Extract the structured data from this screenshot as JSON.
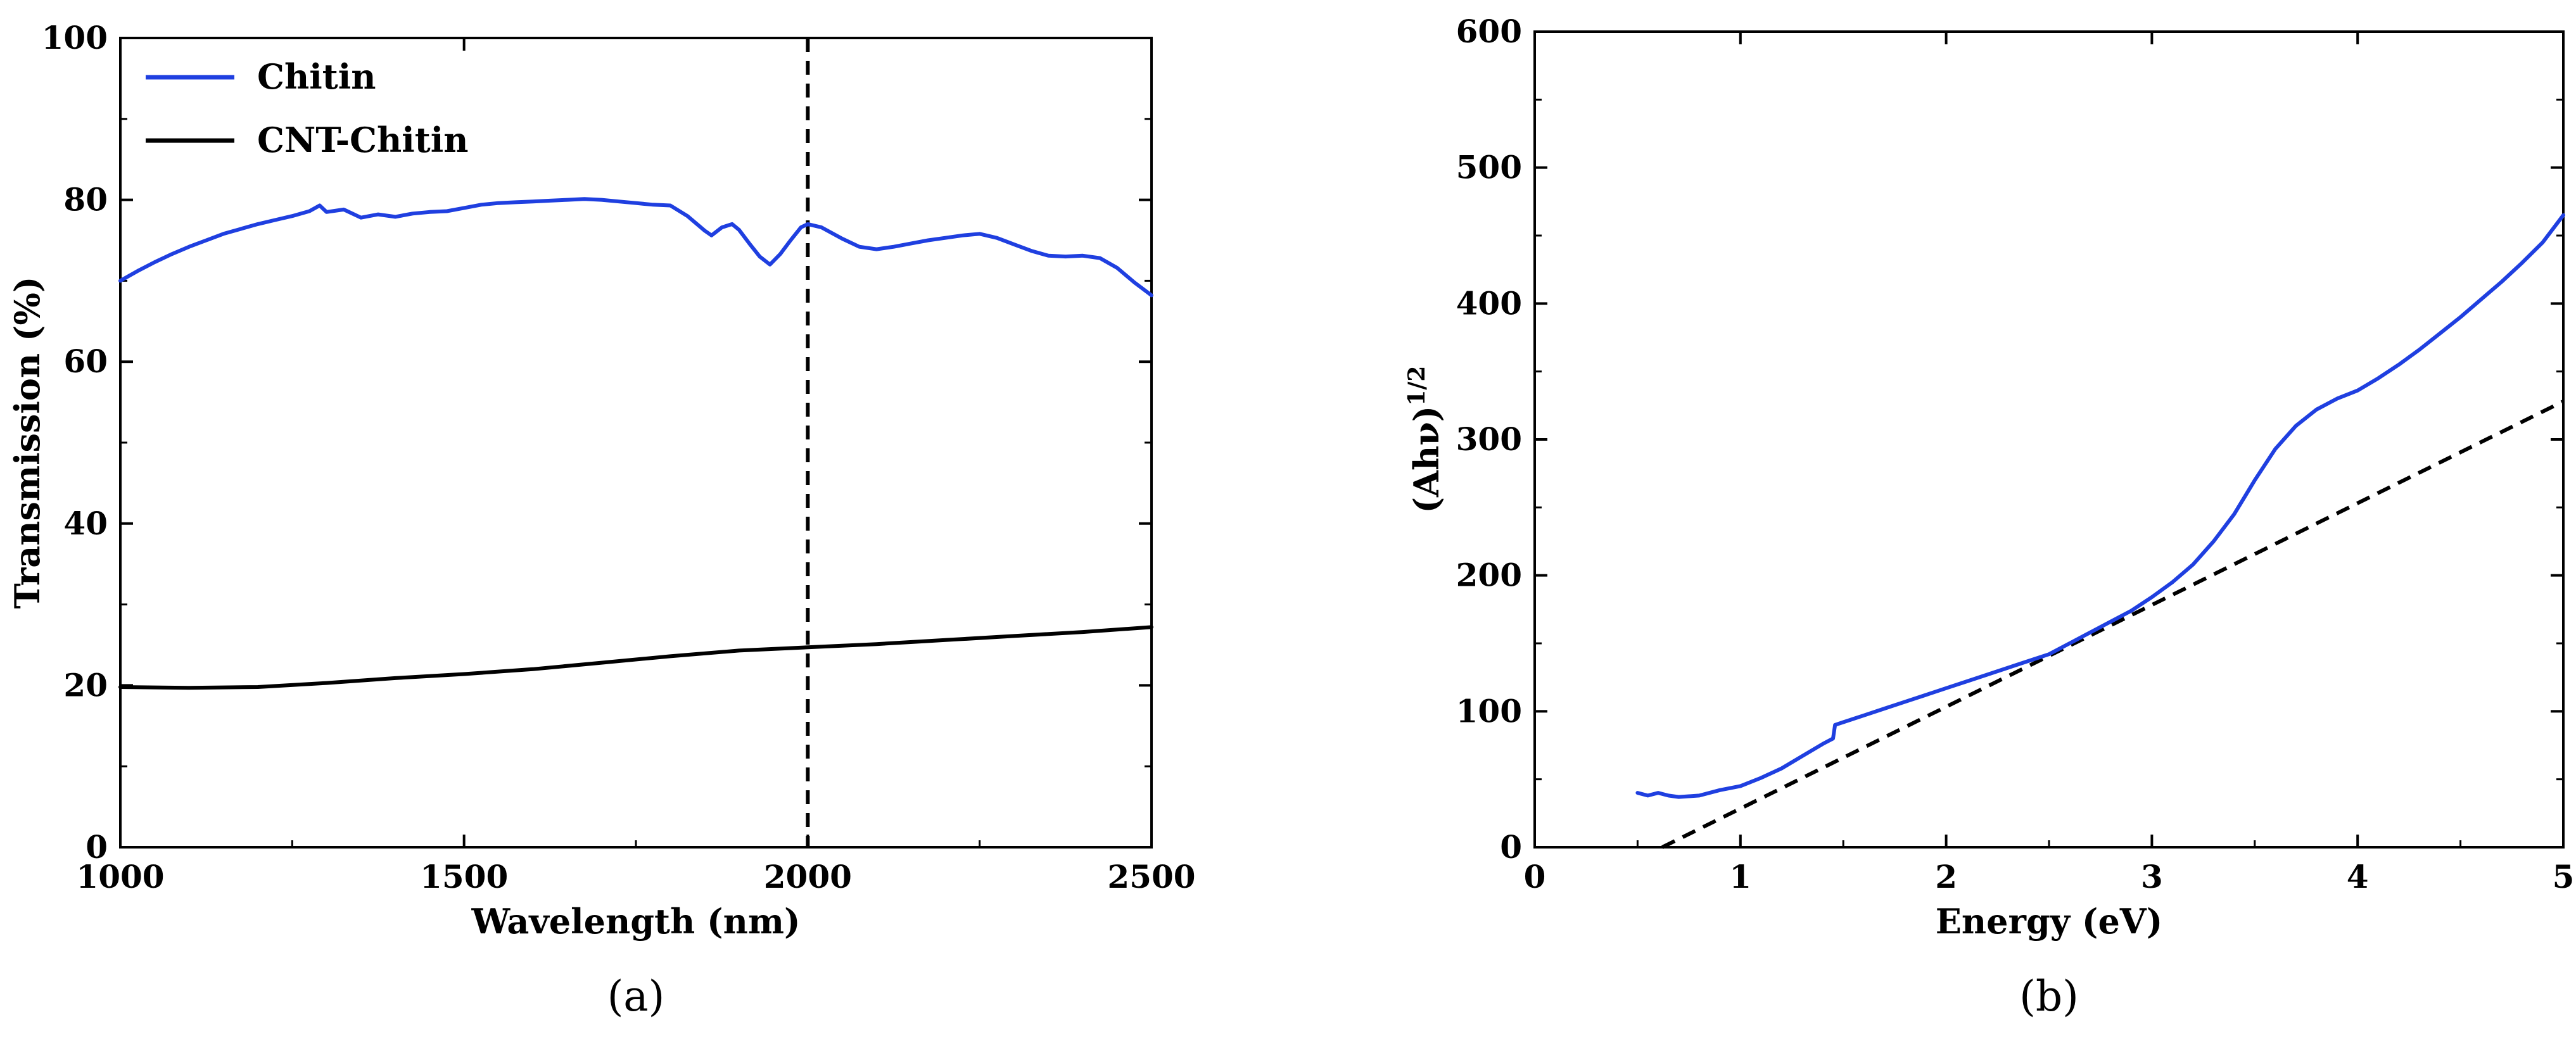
{
  "chart_data": [
    {
      "type": "line",
      "panel_label": "(a)",
      "xlabel": "Wavelength (nm)",
      "ylabel": "Transmission (%)",
      "xlim": [
        1000,
        2500
      ],
      "ylim": [
        0,
        100
      ],
      "xticks": [
        1000,
        1500,
        2000,
        2500
      ],
      "yticks": [
        0,
        20,
        40,
        60,
        80,
        100
      ],
      "legend_position": "top-left",
      "grid": false,
      "series": [
        {
          "name": "Chitin",
          "color": "#1f3fe0",
          "x": [
            1000,
            1025,
            1050,
            1075,
            1100,
            1125,
            1150,
            1175,
            1200,
            1225,
            1250,
            1275,
            1290,
            1300,
            1325,
            1350,
            1375,
            1400,
            1425,
            1450,
            1475,
            1500,
            1525,
            1550,
            1575,
            1600,
            1625,
            1650,
            1675,
            1700,
            1725,
            1750,
            1775,
            1800,
            1825,
            1850,
            1860,
            1875,
            1890,
            1900,
            1915,
            1930,
            1945,
            1960,
            1975,
            1990,
            2000,
            2020,
            2050,
            2075,
            2100,
            2125,
            2150,
            2175,
            2200,
            2225,
            2250,
            2275,
            2300,
            2325,
            2350,
            2375,
            2400,
            2425,
            2450,
            2475,
            2500
          ],
          "y": [
            70,
            71.2,
            72.3,
            73.3,
            74.2,
            75,
            75.8,
            76.4,
            77,
            77.5,
            78,
            78.6,
            79.3,
            78.5,
            78.8,
            77.8,
            78.2,
            77.9,
            78.3,
            78.5,
            78.6,
            79,
            79.4,
            79.6,
            79.7,
            79.8,
            79.9,
            80,
            80.1,
            80,
            79.8,
            79.6,
            79.4,
            79.3,
            78,
            76.2,
            75.6,
            76.6,
            77,
            76.3,
            74.6,
            73,
            72,
            73.3,
            75,
            76.6,
            77,
            76.6,
            75.2,
            74.2,
            73.9,
            74.2,
            74.6,
            75,
            75.3,
            75.6,
            75.8,
            75.3,
            74.5,
            73.7,
            73.1,
            73,
            73.1,
            72.8,
            71.6,
            69.8,
            68.2
          ]
        },
        {
          "name": "CNT-Chitin",
          "color": "#000000",
          "x": [
            1000,
            1100,
            1200,
            1300,
            1400,
            1500,
            1600,
            1700,
            1800,
            1900,
            2000,
            2100,
            2200,
            2300,
            2400,
            2500
          ],
          "y": [
            19.8,
            19.7,
            19.8,
            20.3,
            20.9,
            21.4,
            22,
            22.8,
            23.6,
            24.3,
            24.7,
            25.1,
            25.6,
            26.1,
            26.6,
            27.2
          ]
        }
      ],
      "reference_line": {
        "axis": "x",
        "value": 2000,
        "style": "dashed"
      }
    },
    {
      "type": "line",
      "panel_label": "(b)",
      "xlabel": "Energy (eV)",
      "ylabel": "(Ahν)",
      "ylabel_superscript": "1/2",
      "xlim": [
        0,
        5
      ],
      "ylim": [
        0,
        600
      ],
      "xticks": [
        0,
        1,
        2,
        3,
        4,
        5
      ],
      "yticks": [
        0,
        100,
        200,
        300,
        400,
        500,
        600
      ],
      "legend_position": "none",
      "grid": false,
      "series": [
        {
          "color": "#1f3fe0",
          "x": [
            0.5,
            0.55,
            0.6,
            0.65,
            0.7,
            0.8,
            0.9,
            1.0,
            1.1,
            1.2,
            1.3,
            1.4,
            1.45,
            1.46,
            1.5,
            1.6,
            1.7,
            1.8,
            1.9,
            2.0,
            2.1,
            2.2,
            2.3,
            2.4,
            2.5,
            2.6,
            2.7,
            2.8,
            2.9,
            3.0,
            3.1,
            3.2,
            3.3,
            3.4,
            3.5,
            3.6,
            3.7,
            3.8,
            3.9,
            4.0,
            4.1,
            4.2,
            4.3,
            4.4,
            4.5,
            4.6,
            4.7,
            4.8,
            4.9,
            5.0
          ],
          "y": [
            40,
            38,
            40,
            38,
            37,
            38,
            42,
            45,
            51,
            58,
            67,
            76,
            80,
            90,
            92,
            97,
            102,
            107,
            112,
            117,
            122,
            127,
            132,
            137,
            142,
            150,
            158,
            166,
            174,
            184,
            195,
            208,
            225,
            245,
            270,
            293,
            310,
            322,
            330,
            336,
            345,
            355,
            366,
            378,
            390,
            403,
            416,
            430,
            445,
            465
          ]
        }
      ],
      "fit_line": {
        "x": [
          0.62,
          5.0
        ],
        "y": [
          0,
          328
        ],
        "style": "dashed",
        "color": "#000000"
      }
    }
  ]
}
